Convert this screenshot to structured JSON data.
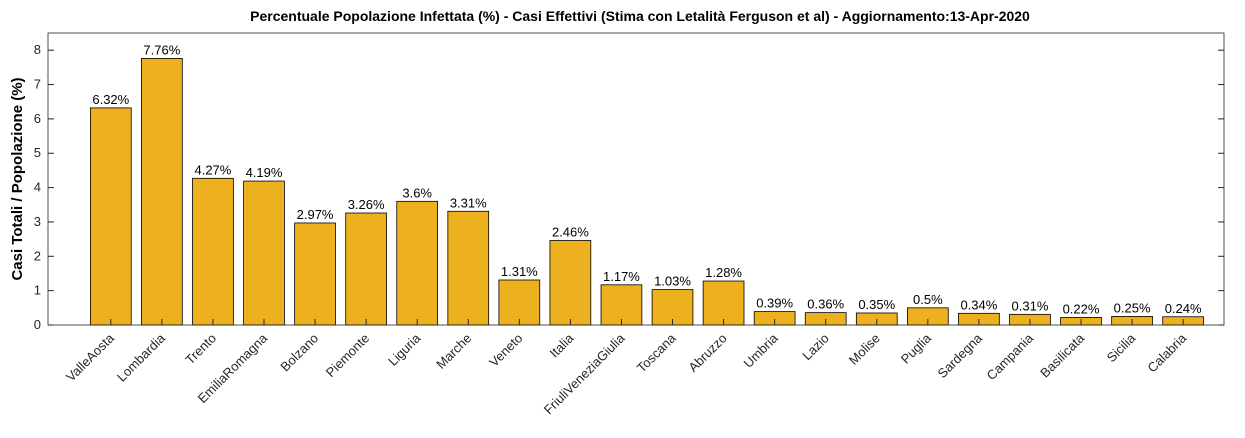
{
  "chart_data": {
    "type": "bar",
    "title": "Percentuale Popolazione Infettata (%) - Casi Effettivi (Stima con Letalità Ferguson et al) - Aggiornamento:13-Apr-2020",
    "y_label": "Casi Totali / Popolazione (%)",
    "categories": [
      "ValleAosta",
      "Lombardia",
      "Trento",
      "EmiliaRomagna",
      "Bolzano",
      "Piemonte",
      "Liguria",
      "Marche",
      "Veneto",
      "Italia",
      "FriuliVeneziaGiulia",
      "Toscana",
      "Abruzzo",
      "Umbria",
      "Lazio",
      "Molise",
      "Puglia",
      "Sardegna",
      "Campania",
      "Basilicata",
      "Sicilia",
      "Calabria"
    ],
    "values": [
      6.32,
      7.76,
      4.27,
      4.19,
      2.97,
      3.26,
      3.6,
      3.31,
      1.31,
      2.46,
      1.17,
      1.03,
      1.28,
      0.39,
      0.36,
      0.35,
      0.5,
      0.34,
      0.31,
      0.22,
      0.25,
      0.24
    ],
    "value_labels": [
      "6.32%",
      "7.76%",
      "4.27%",
      "4.19%",
      "2.97%",
      "3.26%",
      "3.6%",
      "3.31%",
      "1.31%",
      "2.46%",
      "1.17%",
      "1.03%",
      "1.28%",
      "0.39%",
      "0.36%",
      "0.35%",
      "0.5%",
      "0.34%",
      "0.31%",
      "0.22%",
      "0.25%",
      "0.24%"
    ],
    "color": "#edb120",
    "ylim": [
      0,
      8.5
    ],
    "yticks": [
      0,
      1,
      2,
      3,
      4,
      5,
      6,
      7,
      8
    ],
    "grid": false
  }
}
